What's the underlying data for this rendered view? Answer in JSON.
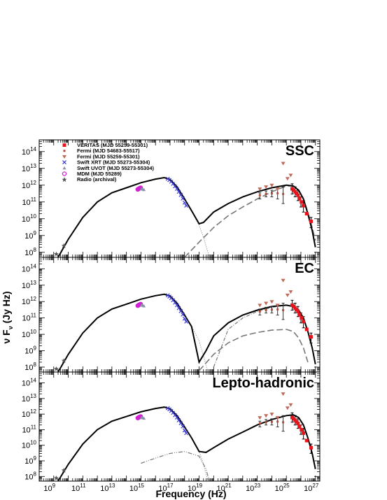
{
  "chart_data": [
    {
      "type": "scatter",
      "title": "SSC",
      "xscale": "log",
      "yscale": "log",
      "xlim": [
        100000000.0,
        2e+27
      ],
      "ylim": [
        50000000.0,
        500000000000000.0
      ],
      "legend_placement": "top-left",
      "legend": [
        {
          "label": "VERITAS (MJD 55259-55301)",
          "marker": "square",
          "color": "#e8141c"
        },
        {
          "label": "Fermi (MJD 54683-55517)",
          "marker": "small-square",
          "color": "#b5493a"
        },
        {
          "label": "Fermi (MJD 55259-55301)",
          "marker": "triangle-down",
          "color": "#c06a5a"
        },
        {
          "label": "Swift XRT (MJD 55273-55304)",
          "marker": "cross",
          "color": "#3b3bd6"
        },
        {
          "label": "Swift UVOT (MJD 55273-55304)",
          "marker": "triangle-up",
          "color": "#8a93a8"
        },
        {
          "label": "MDM (MJD 55289)",
          "marker": "circle",
          "color": "#d21fd2"
        },
        {
          "label": "Radio (archival)",
          "marker": "star",
          "color": "#555555"
        }
      ],
      "points": {
        "radio": [
          [
            1500000000.0,
            80000000.0
          ],
          [
            5000000000.0,
            250000000.0
          ]
        ],
        "mdm": [
          [
            600000000000000.0,
            560000000000.0
          ],
          [
            660000000000000.0,
            590000000000.0
          ],
          [
            720000000000000.0,
            620000000000.0
          ],
          [
            800000000000000.0,
            650000000000.0
          ],
          [
            880000000000000.0,
            680000000000.0
          ],
          [
            960000000000000.0,
            700000000000.0
          ]
        ],
        "uvot": [
          [
            1100000000000000.0,
            600000000000.0
          ],
          [
            1300000000000000.0,
            580000000000.0
          ],
          [
            1600000000000000.0,
            540000000000.0
          ]
        ],
        "xrt": [
          [
            7e+16,
            2400000000000.0
          ],
          [
            9e+16,
            2000000000000.0
          ],
          [
            1.2e+17,
            1600000000000.0
          ],
          [
            1.6e+17,
            1200000000000.0
          ],
          [
            2.2e+17,
            850000000000.0
          ],
          [
            3e+17,
            600000000000.0
          ],
          [
            4e+17,
            400000000000.0
          ],
          [
            5.5e+17,
            260000000000.0
          ],
          [
            7.5e+17,
            160000000000.0
          ],
          [
            1e+18,
            90000000000.0
          ],
          [
            1.3e+18,
            60000000000.0
          ]
        ],
        "fermi_long": [
          [
            1.5e+23,
            250000000000.0
          ],
          [
            4e+23,
            300000000000.0
          ],
          [
            1e+24,
            320000000000.0
          ],
          [
            2.5e+24,
            330000000000.0
          ],
          [
            6e+24,
            300000000000.0
          ]
        ],
        "fermi_long_err": [
          [
            1.5e+23,
            150000000000.0,
            350000000000.0
          ],
          [
            4e+23,
            200000000000.0,
            450000000000.0
          ],
          [
            1e+24,
            200000000000.0,
            500000000000.0
          ],
          [
            2.5e+24,
            150000000000.0,
            600000000000.0
          ],
          [
            6e+24,
            80000000000.0,
            800000000000.0
          ]
        ],
        "fermi_short_ul": [
          [
            1.5e+23,
            600000000000.0
          ],
          [
            4e+23,
            800000000000.0
          ],
          [
            1e+24,
            1000000000000.0
          ],
          [
            2.5e+24,
            600000000000.0
          ],
          [
            6e+24,
            20000000000000.0
          ],
          [
            1.2e+25,
            2500000000000.0
          ],
          [
            2e+25,
            4000000000000.0
          ]
        ],
        "veritas": [
          [
            2.5e+25,
            600000000000.0
          ],
          [
            3.2e+25,
            500000000000.0
          ],
          [
            4e+25,
            400000000000.0
          ],
          [
            5e+25,
            320000000000.0
          ],
          [
            6.3e+25,
            250000000000.0
          ],
          [
            8e+25,
            160000000000.0
          ],
          [
            1.1e+26,
            100000000000.0
          ],
          [
            1.5e+26,
            60000000000.0
          ],
          [
            2.5e+26,
            20000000000.0
          ],
          [
            5e+26,
            7000000000.0
          ]
        ],
        "veritas_err": [
          [
            2.5e+25,
            300000000000.0,
            1200000000000.0
          ],
          [
            4e+25,
            200000000000.0,
            800000000000.0
          ],
          [
            6.3e+25,
            120000000000.0,
            500000000000.0
          ],
          [
            1e+26,
            50000000000.0,
            200000000000.0
          ],
          [
            1.5e+26,
            25000000000.0,
            120000000000.0
          ],
          [
            5e+26,
            3000000000.0,
            12000000000.0
          ]
        ]
      },
      "models": {
        "total": [
          [
            2000000000.0,
            50000000.0
          ],
          [
            10000000000.0,
            600000000.0
          ],
          [
            100000000000.0,
            12000000000.0
          ],
          [
            1000000000000.0,
            100000000000.0
          ],
          [
            10000000000000.0,
            350000000000.0
          ],
          [
            100000000000000.0,
            700000000000.0
          ],
          [
            1000000000000000.0,
            1400000000000.0
          ],
          [
            1e+16,
            2300000000000.0
          ],
          [
            4e+16,
            2800000000000.0
          ],
          [
            1e+17,
            2200000000000.0
          ],
          [
            3e+17,
            800000000000.0
          ],
          [
            1e+18,
            150000000000.0
          ],
          [
            3e+18,
            30000000000.0
          ],
          [
            1e+19,
            5000000000.0
          ],
          [
            2e+19,
            6000000000.0
          ],
          [
            1e+20,
            25000000000.0
          ],
          [
            1e+21,
            80000000000.0
          ],
          [
            1e+22,
            200000000000.0
          ],
          [
            1e+23,
            400000000000.0
          ],
          [
            1e+24,
            700000000000.0
          ],
          [
            1e+25,
            1000000000000.0
          ],
          [
            3e+25,
            900000000000.0
          ],
          [
            7e+25,
            500000000000.0
          ],
          [
            1.5e+26,
            150000000000.0
          ],
          [
            3e+26,
            20000000000.0
          ],
          [
            6e+26,
            2000000000.0
          ],
          [
            1e+27,
            200000000.0
          ]
        ],
        "ssc": [
          [
            1e+18,
            50000000.0
          ],
          [
            1e+19,
            400000000.0
          ],
          [
            1e+20,
            3000000000.0
          ],
          [
            1e+21,
            15000000000.0
          ],
          [
            1e+22,
            50000000000.0
          ],
          [
            1e+23,
            150000000000.0
          ],
          [
            1e+24,
            400000000000.0
          ],
          [
            1e+25,
            900000000000.0
          ],
          [
            3e+25,
            900000000000.0
          ],
          [
            7e+25,
            500000000000.0
          ],
          [
            1.5e+26,
            150000000000.0
          ],
          [
            3e+26,
            25000000000.0
          ],
          [
            6e+26,
            3000000000.0
          ],
          [
            1e+27,
            500000000.0
          ]
        ],
        "synchrotron_tail": [
          [
            1e+18,
            150000000000.0
          ],
          [
            3e+18,
            30000000000.0
          ],
          [
            1e+19,
            4000000000.0
          ],
          [
            2e+19,
            800000000.0
          ],
          [
            5e+19,
            50000000.0
          ]
        ]
      }
    },
    {
      "type": "scatter",
      "title": "EC",
      "xscale": "log",
      "yscale": "log",
      "xlim": [
        100000000.0,
        2e+27
      ],
      "ylim": [
        50000000.0,
        500000000000000.0
      ],
      "ylabel": "ν F_ν (Jy Hz)",
      "models": {
        "total": [
          [
            2000000000.0,
            50000000.0
          ],
          [
            10000000000.0,
            600000000.0
          ],
          [
            100000000000.0,
            12000000000.0
          ],
          [
            1000000000000.0,
            100000000000.0
          ],
          [
            10000000000000.0,
            350000000000.0
          ],
          [
            100000000000000.0,
            700000000000.0
          ],
          [
            1000000000000000.0,
            1400000000000.0
          ],
          [
            1e+16,
            2300000000000.0
          ],
          [
            4e+16,
            2800000000000.0
          ],
          [
            1e+17,
            2200000000000.0
          ],
          [
            3e+17,
            800000000000.0
          ],
          [
            1e+18,
            150000000000.0
          ],
          [
            3e+18,
            30000000000.0
          ],
          [
            1e+19,
            200000000.0
          ],
          [
            3e+19,
            1000000000.0
          ],
          [
            1e+20,
            8000000000.0
          ],
          [
            1e+21,
            50000000000.0
          ],
          [
            1e+22,
            150000000000.0
          ],
          [
            1e+23,
            300000000000.0
          ],
          [
            1e+24,
            500000000000.0
          ],
          [
            1e+25,
            600000000000.0
          ],
          [
            3e+25,
            500000000000.0
          ],
          [
            7e+25,
            300000000000.0
          ],
          [
            1.5e+26,
            100000000000.0
          ],
          [
            3e+26,
            15000000000.0
          ],
          [
            6e+26,
            1500000000.0
          ],
          [
            1e+27,
            150000000.0
          ]
        ],
        "ssc": [
          [
            1e+19,
            60000000.0
          ],
          [
            1e+20,
            600000000.0
          ],
          [
            1e+21,
            3000000000.0
          ],
          [
            1e+22,
            8000000000.0
          ],
          [
            1e+23,
            13000000000.0
          ],
          [
            1e+24,
            18000000000.0
          ],
          [
            1e+25,
            20000000000.0
          ],
          [
            3e+25,
            15000000000.0
          ],
          [
            7e+25,
            6000000000.0
          ],
          [
            1.5e+26,
            1500000000.0
          ],
          [
            3e+26,
            200000000.0
          ]
        ],
        "ec": [
          [
            1e+20,
            100000000.0
          ],
          [
            1e+21,
            20000000000.0
          ],
          [
            1e+22,
            100000000000.0
          ],
          [
            1e+23,
            250000000000.0
          ],
          [
            1e+24,
            450000000000.0
          ],
          [
            1e+25,
            600000000000.0
          ],
          [
            3e+25,
            500000000000.0
          ],
          [
            7e+25,
            300000000000.0
          ],
          [
            1.5e+26,
            100000000000.0
          ],
          [
            3e+26,
            15000000000.0
          ],
          [
            6e+26,
            1500000000.0
          ]
        ],
        "synchrotron_tail": [
          [
            1e+18,
            150000000000.0
          ],
          [
            3e+18,
            30000000000.0
          ],
          [
            1e+19,
            4000000000.0
          ],
          [
            2e+19,
            500000000.0
          ],
          [
            4e+19,
            50000000.0
          ]
        ]
      }
    },
    {
      "type": "scatter",
      "title": "Lepto-hadronic",
      "xscale": "log",
      "yscale": "log",
      "xlim": [
        100000000.0,
        2e+27
      ],
      "ylim": [
        50000000.0,
        500000000000000.0
      ],
      "xlabel": "Frequency (Hz)",
      "models": {
        "total": [
          [
            2000000000.0,
            50000000.0
          ],
          [
            10000000000.0,
            600000000.0
          ],
          [
            100000000000.0,
            12000000000.0
          ],
          [
            1000000000000.0,
            100000000000.0
          ],
          [
            10000000000000.0,
            350000000000.0
          ],
          [
            100000000000000.0,
            700000000000.0
          ],
          [
            1000000000000000.0,
            1400000000000.0
          ],
          [
            1e+16,
            2300000000000.0
          ],
          [
            4e+16,
            2800000000000.0
          ],
          [
            1e+17,
            2200000000000.0
          ],
          [
            3e+17,
            800000000000.0
          ],
          [
            1e+18,
            150000000000.0
          ],
          [
            3e+18,
            30000000000.0
          ],
          [
            1e+19,
            4000000000.0
          ],
          [
            3e+19,
            3500000000.0
          ],
          [
            1e+20,
            7000000000.0
          ],
          [
            1e+21,
            25000000000.0
          ],
          [
            1e+22,
            70000000000.0
          ],
          [
            1e+23,
            200000000000.0
          ],
          [
            1e+24,
            450000000000.0
          ],
          [
            1e+25,
            800000000000.0
          ],
          [
            3e+25,
            900000000000.0
          ],
          [
            7e+25,
            600000000000.0
          ],
          [
            1.5e+26,
            200000000000.0
          ],
          [
            3e+26,
            30000000000.0
          ],
          [
            6e+26,
            3000000000.0
          ],
          [
            1e+27,
            300000000.0
          ]
        ],
        "hadronic_cascade": [
          [
            1000000000000000.0,
            700000000.0
          ],
          [
            1e+16,
            1500000000.0
          ],
          [
            1e+17,
            3000000000.0
          ],
          [
            1e+18,
            4000000000.0
          ],
          [
            1e+19,
            2000000000.0
          ],
          [
            3e+19,
            300000000.0
          ],
          [
            5e+19,
            50000000.0
          ]
        ],
        "synchrotron_tail": [
          [
            1e+18,
            150000000000.0
          ],
          [
            3e+18,
            30000000000.0
          ],
          [
            1e+19,
            4000000000.0
          ],
          [
            2e+19,
            600000000.0
          ],
          [
            4e+19,
            50000000.0
          ]
        ]
      }
    }
  ],
  "axes": {
    "xlabel": "Frequency (Hz)",
    "ylabel": "ν F_ν (Jy Hz)",
    "x_tick_exponents": [
      9,
      11,
      13,
      15,
      17,
      19,
      21,
      23,
      25,
      27
    ],
    "y_tick_exponents": [
      8,
      9,
      10,
      11,
      12,
      13,
      14
    ]
  },
  "text": {
    "tick_base": "10",
    "ylabel_nu": "ν",
    "ylabel_F": " F",
    "ylabel_sub": "ν",
    "ylabel_unit": " (Jy Hz)"
  },
  "colors": {
    "veritas": "#e8141c",
    "fermi_long": "#b5493a",
    "fermi_short": "#c06a5a",
    "xrt": "#3b3bd6",
    "uvot": "#8a93a8",
    "mdm": "#d21fd2",
    "radio": "#555555",
    "model_total": "#000000",
    "model_component": "#777777"
  }
}
